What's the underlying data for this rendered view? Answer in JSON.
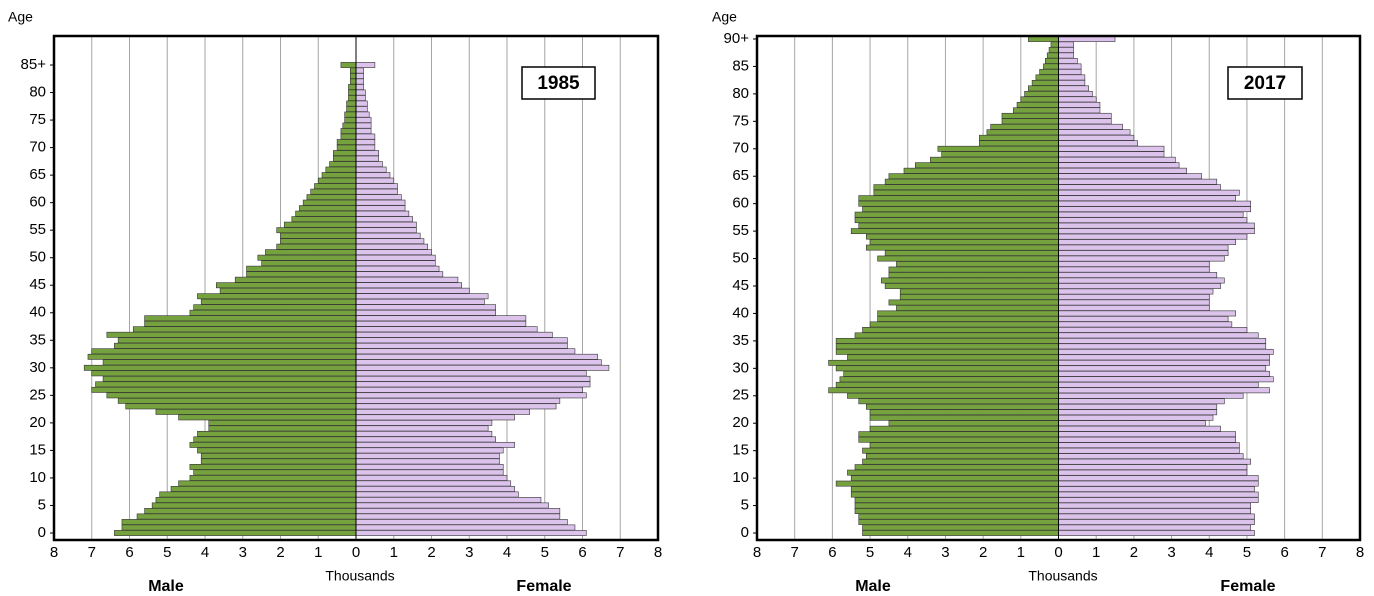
{
  "chart_data": [
    {
      "type": "pyramid",
      "title": "1985",
      "y_label": "Age",
      "x_label": "Thousands",
      "categories": [
        "0",
        null,
        null,
        null,
        null,
        "5",
        null,
        null,
        null,
        null,
        "10",
        null,
        null,
        null,
        null,
        "15",
        null,
        null,
        null,
        null,
        "20",
        null,
        null,
        null,
        null,
        "25",
        null,
        null,
        null,
        null,
        "30",
        null,
        null,
        null,
        null,
        "35",
        null,
        null,
        null,
        null,
        "40",
        null,
        null,
        null,
        null,
        "45",
        null,
        null,
        null,
        null,
        "50",
        null,
        null,
        null,
        null,
        "55",
        null,
        null,
        null,
        null,
        "60",
        null,
        null,
        null,
        null,
        "65",
        null,
        null,
        null,
        null,
        "70",
        null,
        null,
        null,
        null,
        "75",
        null,
        null,
        null,
        null,
        "80",
        null,
        null,
        null,
        null,
        "85+"
      ],
      "series": [
        {
          "name": "Male",
          "color": "#76a13f",
          "values": [
            6.4,
            6.2,
            6.2,
            5.8,
            5.6,
            5.4,
            5.3,
            5.2,
            4.9,
            4.7,
            4.4,
            4.3,
            4.4,
            4.1,
            4.1,
            4.2,
            4.4,
            4.3,
            4.2,
            3.9,
            3.9,
            4.7,
            5.3,
            6.1,
            6.3,
            6.6,
            7.0,
            6.9,
            6.7,
            7.0,
            7.2,
            6.7,
            7.1,
            7.0,
            6.4,
            6.3,
            6.6,
            5.9,
            5.6,
            5.6,
            4.4,
            4.3,
            4.1,
            4.2,
            3.6,
            3.7,
            3.2,
            2.9,
            2.9,
            2.5,
            2.6,
            2.4,
            2.1,
            2.0,
            2.0,
            2.1,
            1.9,
            1.7,
            1.6,
            1.5,
            1.4,
            1.3,
            1.2,
            1.1,
            1.0,
            0.9,
            0.8,
            0.7,
            0.6,
            0.6,
            0.5,
            0.5,
            0.4,
            0.4,
            0.35,
            0.3,
            0.3,
            0.25,
            0.25,
            0.2,
            0.2,
            0.2,
            0.15,
            0.15,
            0.15,
            0.4
          ]
        },
        {
          "name": "Female",
          "color": "#dcc3ec",
          "values": [
            6.1,
            5.8,
            5.6,
            5.4,
            5.4,
            5.1,
            4.9,
            4.3,
            4.2,
            4.1,
            4.0,
            3.9,
            3.9,
            3.8,
            3.8,
            3.9,
            4.2,
            3.7,
            3.6,
            3.5,
            3.6,
            4.2,
            4.6,
            5.3,
            5.4,
            6.1,
            6.0,
            6.2,
            6.2,
            6.1,
            6.7,
            6.5,
            6.4,
            5.8,
            5.6,
            5.6,
            5.2,
            4.8,
            4.5,
            4.5,
            3.7,
            3.7,
            3.4,
            3.5,
            3.0,
            2.8,
            2.7,
            2.3,
            2.2,
            2.1,
            2.1,
            2.0,
            1.9,
            1.8,
            1.7,
            1.6,
            1.6,
            1.5,
            1.4,
            1.3,
            1.3,
            1.2,
            1.1,
            1.1,
            1.0,
            0.9,
            0.8,
            0.7,
            0.6,
            0.6,
            0.5,
            0.5,
            0.5,
            0.4,
            0.4,
            0.4,
            0.35,
            0.3,
            0.3,
            0.25,
            0.25,
            0.2,
            0.2,
            0.2,
            0.2,
            0.5
          ]
        }
      ],
      "xlim": [
        -8,
        8
      ],
      "xticks": [
        {
          "value": -8,
          "label": "8"
        },
        {
          "value": -7,
          "label": "7"
        },
        {
          "value": -6,
          "label": "6"
        },
        {
          "value": -5,
          "label": "5"
        },
        {
          "value": -4,
          "label": "4"
        },
        {
          "value": -3,
          "label": "3"
        },
        {
          "value": -2,
          "label": "2"
        },
        {
          "value": -1,
          "label": "1"
        },
        0,
        1,
        2,
        3,
        4,
        5,
        6,
        7,
        8
      ],
      "grid": true
    },
    {
      "type": "pyramid",
      "title": "2017",
      "y_label": "Age",
      "x_label": "Thousands",
      "categories": [
        "0",
        null,
        null,
        null,
        null,
        "5",
        null,
        null,
        null,
        null,
        "10",
        null,
        null,
        null,
        null,
        "15",
        null,
        null,
        null,
        null,
        "20",
        null,
        null,
        null,
        null,
        "25",
        null,
        null,
        null,
        null,
        "30",
        null,
        null,
        null,
        null,
        "35",
        null,
        null,
        null,
        null,
        "40",
        null,
        null,
        null,
        null,
        "45",
        null,
        null,
        null,
        null,
        "50",
        null,
        null,
        null,
        null,
        "55",
        null,
        null,
        null,
        null,
        "60",
        null,
        null,
        null,
        null,
        "65",
        null,
        null,
        null,
        null,
        "70",
        null,
        null,
        null,
        null,
        "75",
        null,
        null,
        null,
        null,
        "80",
        null,
        null,
        null,
        null,
        "85",
        null,
        null,
        null,
        null,
        "90+"
      ],
      "series": [
        {
          "name": "Male",
          "color": "#76a13f",
          "values": [
            5.2,
            5.2,
            5.3,
            5.3,
            5.4,
            5.4,
            5.4,
            5.5,
            5.5,
            5.9,
            5.5,
            5.6,
            5.4,
            5.2,
            5.1,
            5.2,
            5.0,
            5.3,
            5.3,
            5.0,
            4.5,
            5.0,
            5.0,
            5.1,
            5.3,
            5.6,
            6.1,
            5.9,
            5.8,
            5.7,
            5.9,
            6.1,
            5.6,
            5.9,
            5.9,
            5.9,
            5.4,
            5.2,
            5.0,
            4.8,
            4.8,
            4.3,
            4.5,
            4.2,
            4.2,
            4.6,
            4.7,
            4.5,
            4.5,
            4.3,
            4.8,
            4.6,
            5.1,
            5.0,
            5.1,
            5.5,
            5.3,
            5.4,
            5.4,
            5.2,
            5.3,
            5.3,
            4.9,
            4.9,
            4.6,
            4.5,
            4.1,
            3.8,
            3.4,
            3.1,
            3.2,
            2.1,
            2.1,
            1.9,
            1.8,
            1.5,
            1.5,
            1.2,
            1.1,
            1.0,
            0.9,
            0.8,
            0.7,
            0.6,
            0.5,
            0.4,
            0.35,
            0.3,
            0.25,
            0.2,
            0.8
          ]
        },
        {
          "name": "Female",
          "color": "#dcc3ec",
          "values": [
            5.2,
            5.1,
            5.2,
            5.2,
            5.1,
            5.1,
            5.3,
            5.3,
            5.2,
            5.3,
            5.3,
            5.0,
            5.0,
            5.1,
            4.9,
            4.8,
            4.8,
            4.7,
            4.7,
            4.3,
            3.9,
            4.1,
            4.2,
            4.2,
            4.4,
            4.9,
            5.6,
            5.3,
            5.7,
            5.6,
            5.5,
            5.6,
            5.6,
            5.7,
            5.5,
            5.5,
            5.3,
            5.0,
            4.6,
            4.5,
            4.7,
            4.0,
            4.0,
            4.0,
            4.1,
            4.3,
            4.4,
            4.2,
            4.0,
            4.0,
            4.4,
            4.5,
            4.5,
            4.7,
            5.0,
            5.2,
            5.2,
            5.0,
            4.9,
            5.1,
            5.1,
            4.7,
            4.8,
            4.3,
            4.2,
            3.8,
            3.4,
            3.2,
            3.1,
            2.8,
            2.8,
            2.1,
            2.0,
            1.9,
            1.7,
            1.4,
            1.4,
            1.1,
            1.1,
            1.0,
            0.9,
            0.8,
            0.7,
            0.7,
            0.6,
            0.6,
            0.5,
            0.4,
            0.4,
            0.4,
            1.5
          ]
        }
      ],
      "xlim": [
        -8,
        8
      ],
      "xticks": [
        {
          "value": -8,
          "label": "8"
        },
        {
          "value": -7,
          "label": "7"
        },
        {
          "value": -6,
          "label": "6"
        },
        {
          "value": -5,
          "label": "5"
        },
        {
          "value": -4,
          "label": "4"
        },
        {
          "value": -3,
          "label": "3"
        },
        {
          "value": -2,
          "label": "2"
        },
        {
          "value": -1,
          "label": "1"
        },
        0,
        1,
        2,
        3,
        4,
        5,
        6,
        7,
        8
      ],
      "grid": true
    }
  ]
}
